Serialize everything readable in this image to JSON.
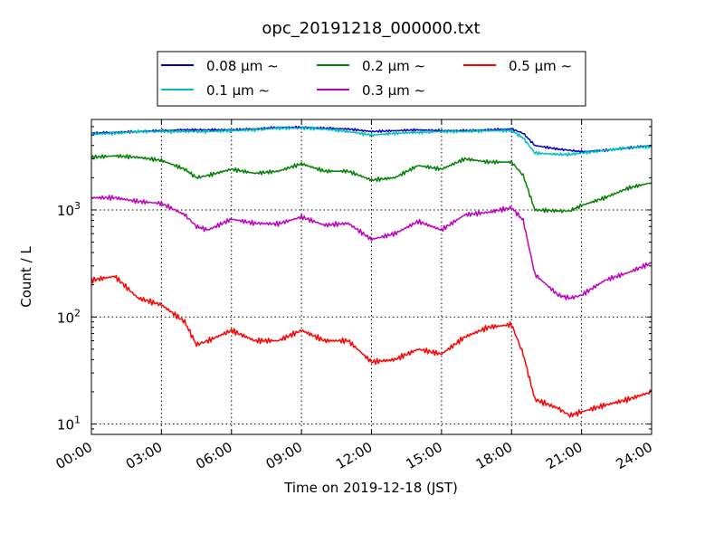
{
  "chart_data": {
    "type": "line",
    "title": "opc_20191218_000000.txt",
    "xlabel": "Time on 2019-12-18 (JST)",
    "ylabel": "Count / L",
    "yscale": "log",
    "xlim": [
      "00:00",
      "24:00"
    ],
    "ylim": [
      8,
      7000
    ],
    "grid": true,
    "legend_position": "top-center",
    "x_ticks": [
      "00:00",
      "03:00",
      "06:00",
      "09:00",
      "12:00",
      "15:00",
      "18:00",
      "21:00",
      "24:00"
    ],
    "y_ticks": [
      {
        "value": 10,
        "label": "10¹",
        "base": "10",
        "exp": "1"
      },
      {
        "value": 100,
        "label": "10²",
        "base": "10",
        "exp": "2"
      },
      {
        "value": 1000,
        "label": "10³",
        "base": "10",
        "exp": "3"
      }
    ],
    "x": [
      "00:00",
      "01:00",
      "02:00",
      "03:00",
      "04:00",
      "04:30",
      "05:00",
      "06:00",
      "07:00",
      "08:00",
      "09:00",
      "10:00",
      "11:00",
      "12:00",
      "13:00",
      "14:00",
      "15:00",
      "16:00",
      "17:00",
      "18:00",
      "18:30",
      "19:00",
      "20:00",
      "20:30",
      "21:00",
      "22:00",
      "23:00",
      "24:00"
    ],
    "series": [
      {
        "name": "0.08 μm ∼",
        "color": "#0000cc",
        "values": [
          5200,
          5300,
          5400,
          5500,
          5600,
          5600,
          5600,
          5600,
          5700,
          5900,
          5900,
          5800,
          5700,
          5400,
          5500,
          5600,
          5500,
          5500,
          5600,
          5700,
          5200,
          4000,
          3700,
          3600,
          3500,
          3600,
          3800,
          4000
        ]
      },
      {
        "name": "0.1 μm ∼",
        "color": "#00bfbf",
        "values": [
          5100,
          5200,
          5400,
          5400,
          5400,
          5400,
          5400,
          5500,
          5600,
          5800,
          5800,
          5700,
          5400,
          5000,
          5200,
          5300,
          5400,
          5400,
          5500,
          5500,
          4700,
          3400,
          3300,
          3300,
          3400,
          3600,
          3800,
          3900
        ]
      },
      {
        "name": "0.2 μm ∼",
        "color": "#008000",
        "values": [
          3100,
          3200,
          3100,
          2900,
          2400,
          2000,
          2100,
          2400,
          2200,
          2300,
          2700,
          2300,
          2300,
          1900,
          2000,
          2600,
          2400,
          3000,
          2800,
          2800,
          2100,
          1000,
          980,
          980,
          1100,
          1300,
          1600,
          1800
        ]
      },
      {
        "name": "0.3 μm ∼",
        "color": "#bf00bf",
        "values": [
          1300,
          1300,
          1200,
          1150,
          900,
          700,
          650,
          820,
          750,
          740,
          860,
          720,
          750,
          530,
          600,
          780,
          650,
          900,
          950,
          1050,
          800,
          250,
          160,
          150,
          160,
          220,
          260,
          320
        ]
      },
      {
        "name": "0.5 μm ∼",
        "color": "#ff0000",
        "values": [
          220,
          240,
          150,
          130,
          90,
          55,
          60,
          75,
          60,
          60,
          75,
          60,
          60,
          38,
          40,
          50,
          45,
          65,
          80,
          85,
          45,
          17,
          14,
          12,
          13,
          15,
          17,
          20
        ]
      }
    ]
  }
}
